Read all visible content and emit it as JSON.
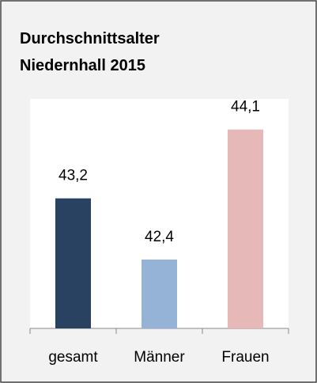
{
  "chart_data": {
    "type": "bar",
    "title": [
      "Durchschnittsalter",
      "Niedernhall 2015"
    ],
    "categories": [
      "gesamt",
      "Männer",
      "Frauen"
    ],
    "values": [
      43.2,
      42.4,
      44.1
    ],
    "value_labels": [
      "43,2",
      "42,4",
      "44,1"
    ],
    "colors": [
      "#2a4262",
      "#95b3d7",
      "#e6b9b8"
    ],
    "ylim": [
      41.5,
      44.5
    ]
  }
}
